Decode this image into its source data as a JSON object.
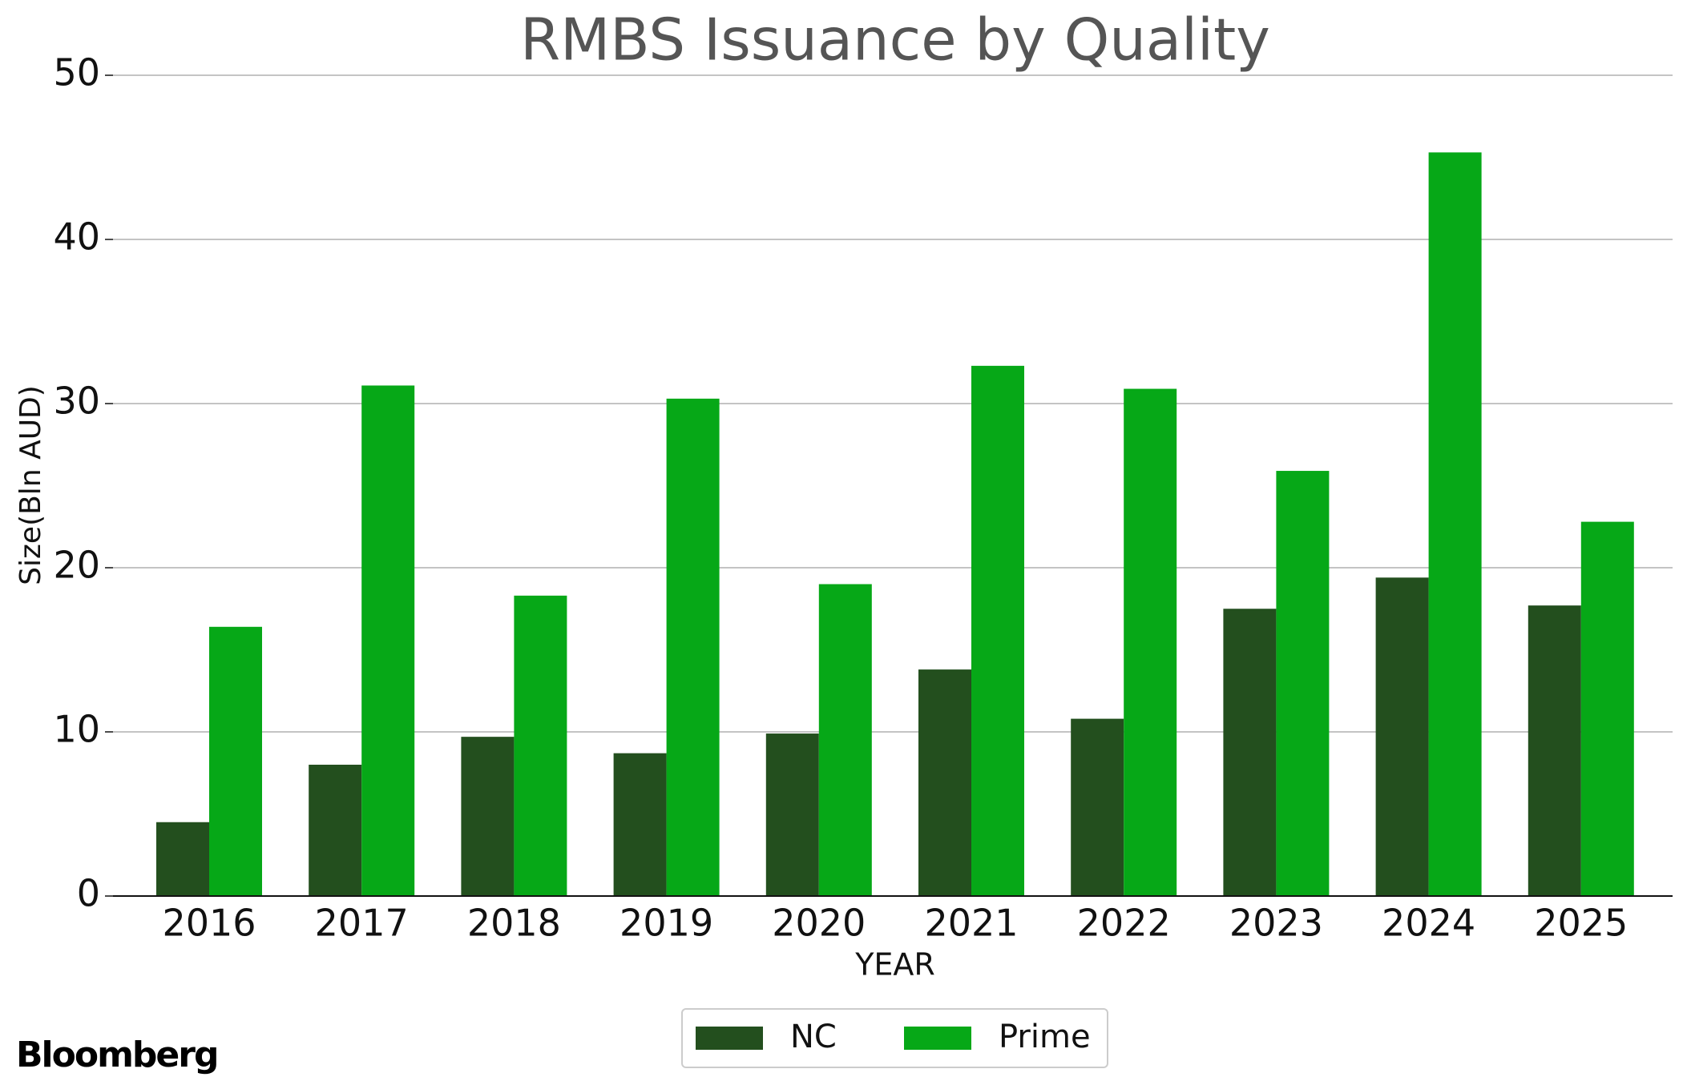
{
  "chart_data": {
    "type": "bar",
    "title": "RMBS Issuance by Quality",
    "x_label": "YEAR",
    "y_label": "Size(Bln AUD)",
    "categories": [
      "2016",
      "2017",
      "2018",
      "2019",
      "2020",
      "2021",
      "2022",
      "2023",
      "2024",
      "2025"
    ],
    "series": [
      {
        "name": "NC",
        "color": "#234f1e",
        "values": [
          4.5,
          8.0,
          9.7,
          8.7,
          9.9,
          13.8,
          10.8,
          17.5,
          19.4,
          17.7
        ]
      },
      {
        "name": "Prime",
        "color": "#06a817",
        "values": [
          16.4,
          31.1,
          18.3,
          30.3,
          19.0,
          32.3,
          30.9,
          25.9,
          45.3,
          22.8
        ]
      }
    ],
    "ylim": [
      0,
      50
    ],
    "yticks": [
      0,
      10,
      20,
      30,
      40,
      50
    ],
    "grid": true,
    "legend": "bottom",
    "source": "Bloomberg"
  }
}
